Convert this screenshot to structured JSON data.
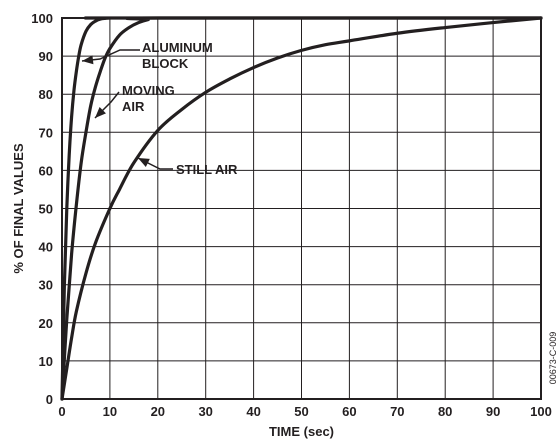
{
  "chart_data": {
    "type": "line",
    "xlabel": "TIME (sec)",
    "ylabel": "% OF FINAL VALUES",
    "xlim": [
      0,
      100
    ],
    "ylim": [
      0,
      100
    ],
    "xticks": [
      0,
      10,
      20,
      30,
      40,
      50,
      60,
      70,
      80,
      90,
      100
    ],
    "yticks": [
      0,
      10,
      20,
      30,
      40,
      50,
      60,
      70,
      80,
      90,
      100
    ],
    "grid": true,
    "line_color": "#231f20",
    "series": [
      {
        "name": "ALUMINUM BLOCK",
        "x": [
          0,
          0.5,
          1,
          1.5,
          2,
          2.5,
          3,
          3.5,
          4,
          5,
          6,
          7,
          8,
          9,
          10,
          12,
          100
        ],
        "y": [
          0,
          30,
          50,
          64,
          74,
          81,
          86,
          90,
          93,
          96.5,
          98.3,
          99.2,
          99.7,
          99.9,
          100,
          100,
          100
        ]
      },
      {
        "name": "MOVING AIR",
        "x": [
          0,
          1,
          2,
          3,
          4,
          5,
          6,
          7,
          8,
          9,
          10,
          12,
          14,
          16,
          18,
          20,
          100
        ],
        "y": [
          0,
          21,
          38,
          51,
          62,
          70,
          77,
          82,
          86,
          89.5,
          92,
          95.5,
          97.5,
          98.8,
          99.6,
          100,
          100
        ]
      },
      {
        "name": "STILL AIR",
        "x": [
          0,
          1,
          2,
          3,
          5,
          7,
          10,
          12,
          15,
          20,
          25,
          30,
          35,
          40,
          45,
          50,
          55,
          60,
          70,
          80,
          90,
          100
        ],
        "y": [
          0,
          8,
          16,
          23,
          33,
          41,
          50,
          55,
          62,
          70.5,
          76,
          80.5,
          84,
          87,
          89.5,
          91.5,
          93,
          94,
          96,
          97.5,
          98.8,
          100
        ]
      }
    ],
    "annotations": [
      {
        "text": [
          "ALUMINUM",
          "BLOCK"
        ],
        "target_series": "ALUMINUM BLOCK"
      },
      {
        "text": [
          "MOVING",
          "AIR"
        ],
        "target_series": "MOVING AIR"
      },
      {
        "text": [
          "STILL AIR"
        ],
        "target_series": "STILL AIR"
      }
    ],
    "figure_id": "00673-C-009"
  }
}
